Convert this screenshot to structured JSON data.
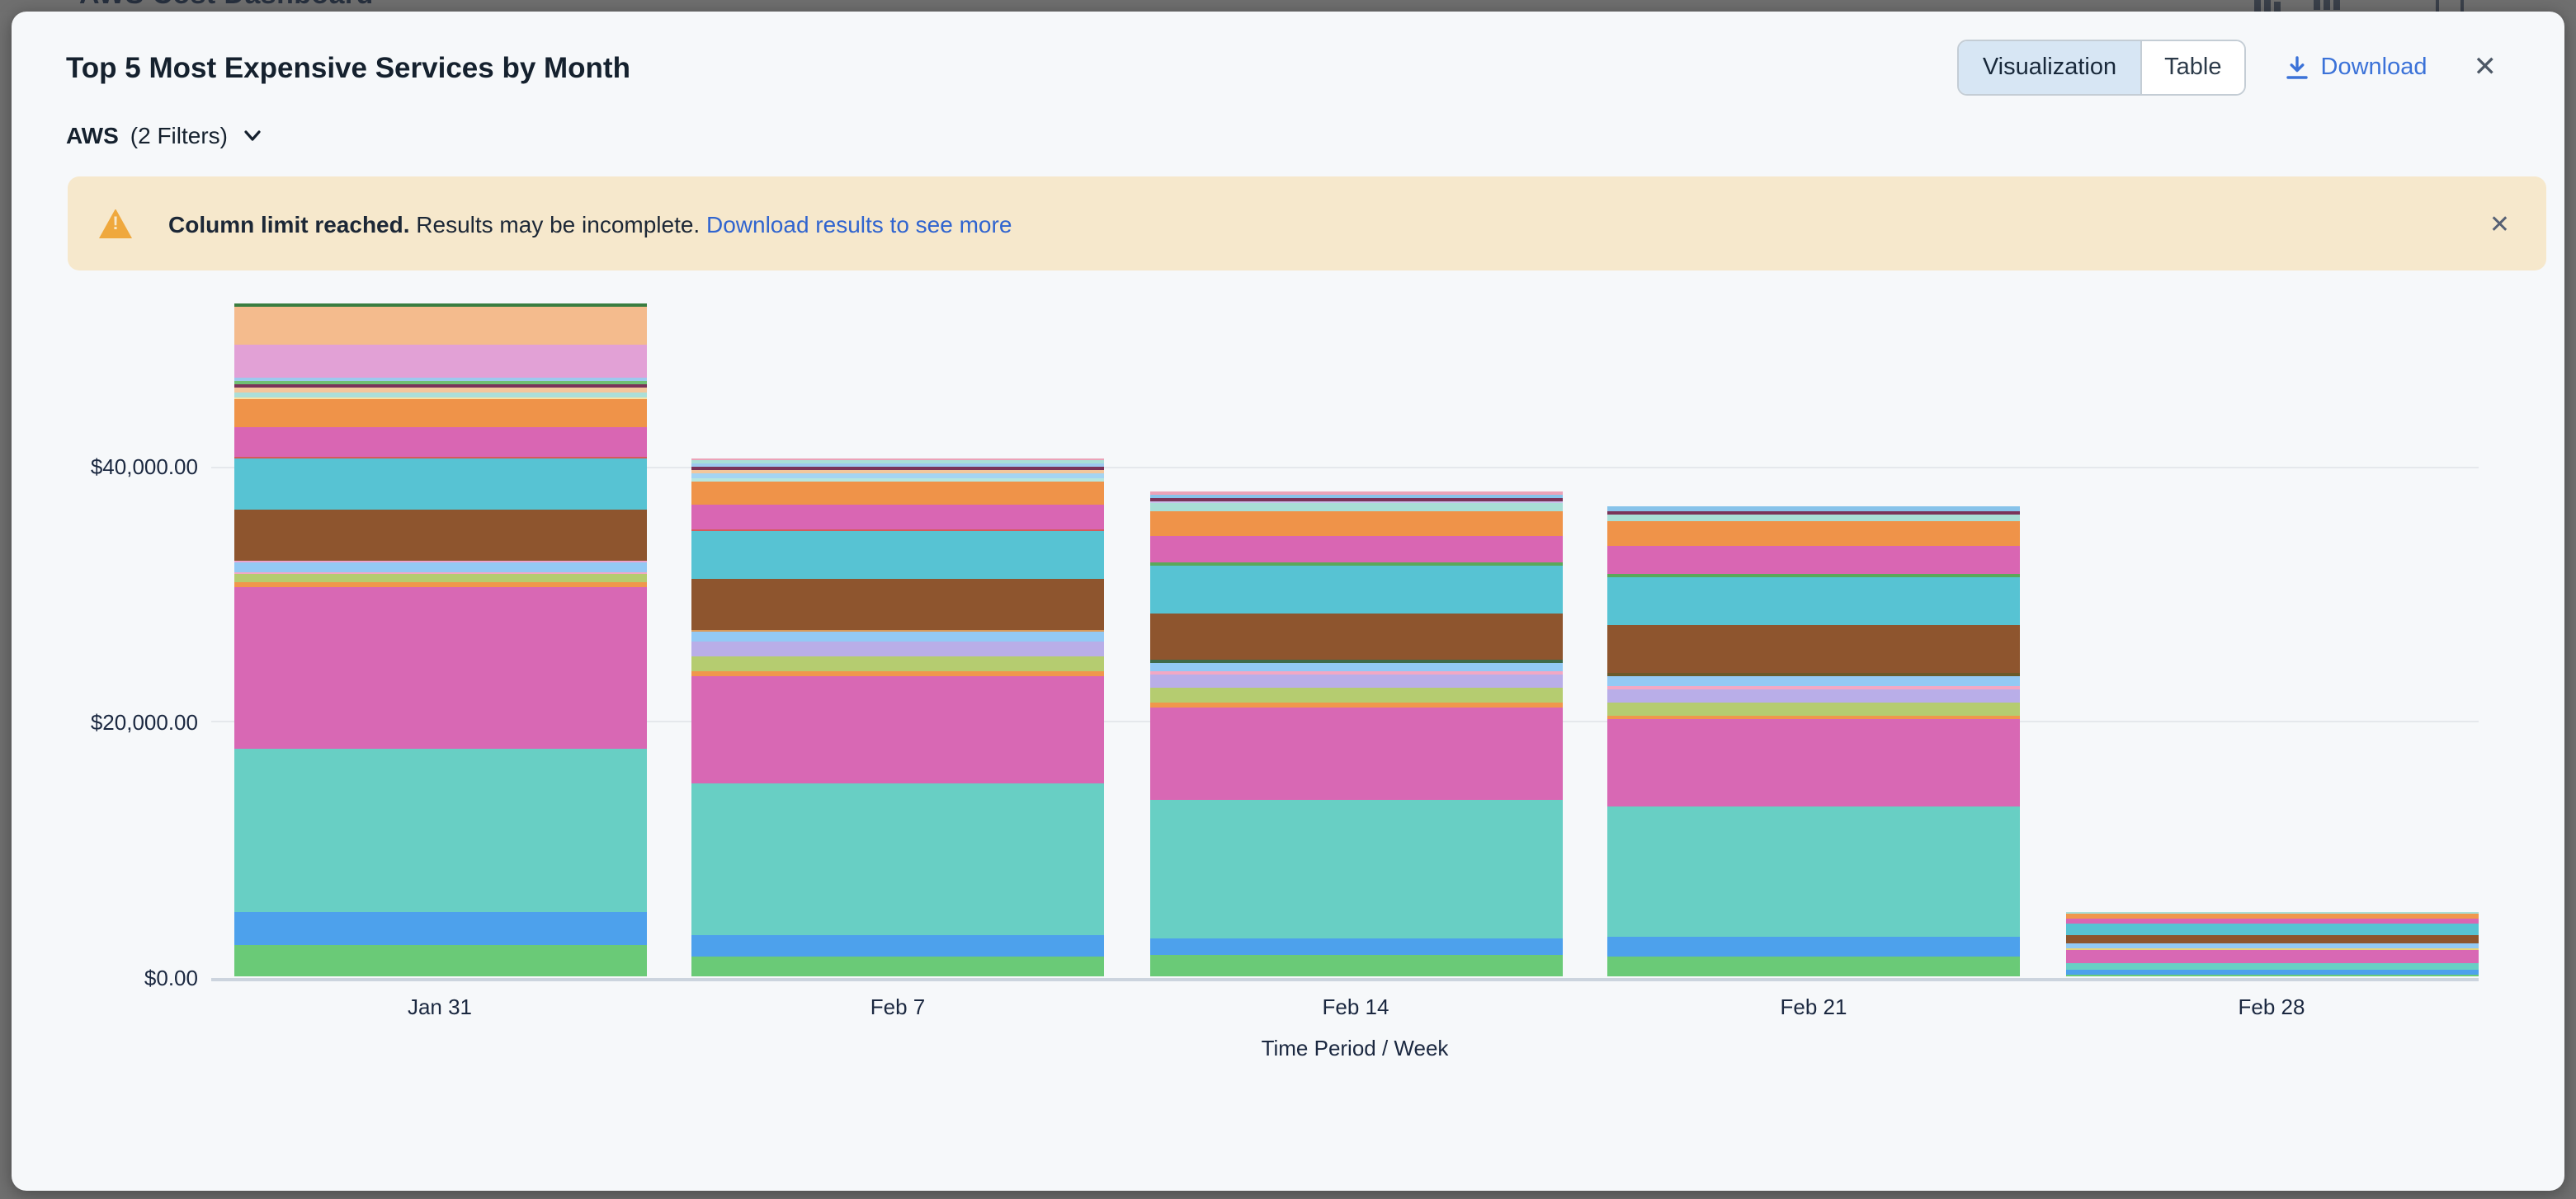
{
  "underlying_page": {
    "title": "AWS Cost Dashboard"
  },
  "modal": {
    "title": "Top 5 Most Expensive Services by Month",
    "filter": {
      "label": "AWS",
      "count_label": "(2 Filters)"
    },
    "view_toggle": {
      "options": [
        "Visualization",
        "Table"
      ],
      "selected": "Visualization"
    },
    "download_label": "Download",
    "close_glyph": "✕",
    "banner": {
      "bold": "Column limit reached.",
      "text": " Results may be incomplete. ",
      "link": "Download results to see more",
      "close_glyph": "✕",
      "background": "#f6e8cc",
      "icon": "warning-triangle"
    }
  },
  "chart_data": {
    "type": "bar",
    "stacked": true,
    "title": "Top 5 Most Expensive Services by Month",
    "xlabel": "Time Period / Week",
    "ylabel": "",
    "unit": "USD",
    "grid": true,
    "legend": "none",
    "y_ticks": [
      {
        "value": 0,
        "label": "$0.00"
      },
      {
        "value": 20000,
        "label": "$20,000.00"
      },
      {
        "value": 40000,
        "label": "$40,000.00"
      }
    ],
    "ylim": [
      0,
      53000
    ],
    "categories": [
      "Jan 31",
      "Feb 7",
      "Feb 14",
      "Feb 21",
      "Feb 28"
    ],
    "segment_order": "top-to-bottom",
    "bars": [
      {
        "label": "Jan 31",
        "total": 52770,
        "segments": [
          {
            "color": "#3a7d40",
            "value": 260
          },
          {
            "color": "#f4bb8d",
            "value": 2900
          },
          {
            "color": "#e2a1d6",
            "value": 2650
          },
          {
            "color": "#9dc9ee",
            "value": 260
          },
          {
            "color": "#6fbf73",
            "value": 260
          },
          {
            "color": "#7a3359",
            "value": 260
          },
          {
            "color": "#f3c79c",
            "value": 390
          },
          {
            "color": "#abdfd8",
            "value": 320
          },
          {
            "color": "#f6e1a4",
            "value": 190
          },
          {
            "color": "#ef9349",
            "value": 2200
          },
          {
            "color": "#d966b3",
            "value": 2260
          },
          {
            "color": "#d45b5b",
            "value": 190
          },
          {
            "color": "#57c3d3",
            "value": 3940
          },
          {
            "color": "#8e552e",
            "value": 4070
          },
          {
            "color": "#eba6cf",
            "value": 190
          },
          {
            "color": "#93c9f4",
            "value": 650
          },
          {
            "color": "#f2a8c4",
            "value": 130
          },
          {
            "color": "#b5cc70",
            "value": 710
          },
          {
            "color": "#f0974c",
            "value": 450
          },
          {
            "color": "#d868b4",
            "value": 12600
          },
          {
            "color": "#68cfc4",
            "value": 12850
          },
          {
            "color": "#4da1ec",
            "value": 2580
          },
          {
            "color": "#6aca77",
            "value": 2460
          }
        ]
      },
      {
        "label": "Feb 7",
        "total": 40700,
        "segments": [
          {
            "color": "#eba3b8",
            "value": 190
          },
          {
            "color": "#a8ded6",
            "value": 260
          },
          {
            "color": "#9dc9ee",
            "value": 260
          },
          {
            "color": "#7a3359",
            "value": 260
          },
          {
            "color": "#f3c79c",
            "value": 260
          },
          {
            "color": "#a5d4f2",
            "value": 320
          },
          {
            "color": "#b8e6de",
            "value": 260
          },
          {
            "color": "#ef9349",
            "value": 1810
          },
          {
            "color": "#d966b3",
            "value": 2000
          },
          {
            "color": "#d45b5b",
            "value": 190
          },
          {
            "color": "#57c3d3",
            "value": 3750
          },
          {
            "color": "#8e552e",
            "value": 3940
          },
          {
            "color": "#d99a5b",
            "value": 190
          },
          {
            "color": "#93c9f4",
            "value": 710
          },
          {
            "color": "#b9aee8",
            "value": 1160
          },
          {
            "color": "#b5cc70",
            "value": 1160
          },
          {
            "color": "#f0974c",
            "value": 390
          },
          {
            "color": "#d868b4",
            "value": 8400
          },
          {
            "color": "#68cfc4",
            "value": 11950
          },
          {
            "color": "#4da1ec",
            "value": 1620
          },
          {
            "color": "#6aca77",
            "value": 1620
          }
        ]
      },
      {
        "label": "Feb 14",
        "total": 38045,
        "segments": [
          {
            "color": "#eba3b8",
            "value": 190
          },
          {
            "color": "#87c3ea",
            "value": 260
          },
          {
            "color": "#7a3359",
            "value": 260
          },
          {
            "color": "#c9c2ec",
            "value": 190
          },
          {
            "color": "#a8ded6",
            "value": 645
          },
          {
            "color": "#ef9349",
            "value": 1940
          },
          {
            "color": "#d966b3",
            "value": 2070
          },
          {
            "color": "#5aa85a",
            "value": 260
          },
          {
            "color": "#57c3d3",
            "value": 3680
          },
          {
            "color": "#8e552e",
            "value": 3620
          },
          {
            "color": "#3e6a4a",
            "value": 320
          },
          {
            "color": "#93c9f4",
            "value": 710
          },
          {
            "color": "#f2a8c4",
            "value": 190
          },
          {
            "color": "#b9aee8",
            "value": 1100
          },
          {
            "color": "#b5cc70",
            "value": 1100
          },
          {
            "color": "#f0974c",
            "value": 390
          },
          {
            "color": "#d868b4",
            "value": 7230
          },
          {
            "color": "#68cfc4",
            "value": 10850
          },
          {
            "color": "#4da1ec",
            "value": 1360
          },
          {
            "color": "#6aca77",
            "value": 1680
          }
        ]
      },
      {
        "label": "Feb 21",
        "total": 36950,
        "segments": [
          {
            "color": "#87c3ea",
            "value": 390
          },
          {
            "color": "#7a3359",
            "value": 260
          },
          {
            "color": "#a8ded6",
            "value": 580
          },
          {
            "color": "#ef9349",
            "value": 1940
          },
          {
            "color": "#d966b3",
            "value": 2130
          },
          {
            "color": "#5aa85a",
            "value": 260
          },
          {
            "color": "#57c3d3",
            "value": 3750
          },
          {
            "color": "#8e552e",
            "value": 3810
          },
          {
            "color": "#6a5a2a",
            "value": 260
          },
          {
            "color": "#93c9f4",
            "value": 710
          },
          {
            "color": "#f2a8c4",
            "value": 260
          },
          {
            "color": "#b9aee8",
            "value": 1100
          },
          {
            "color": "#b5cc70",
            "value": 1030
          },
          {
            "color": "#f0974c",
            "value": 320
          },
          {
            "color": "#d868b4",
            "value": 6780
          },
          {
            "color": "#68cfc4",
            "value": 10270
          },
          {
            "color": "#4da1ec",
            "value": 1550
          },
          {
            "color": "#6aca77",
            "value": 1550
          }
        ]
      },
      {
        "label": "Feb 28",
        "total": 5160,
        "segments": [
          {
            "color": "#a8ded6",
            "value": 190
          },
          {
            "color": "#f0974c",
            "value": 390
          },
          {
            "color": "#d966b3",
            "value": 390
          },
          {
            "color": "#57c3d3",
            "value": 840
          },
          {
            "color": "#8e552e",
            "value": 710
          },
          {
            "color": "#93c9f4",
            "value": 320
          },
          {
            "color": "#e8d27a",
            "value": 130
          },
          {
            "color": "#d868b4",
            "value": 1160
          },
          {
            "color": "#68cfc4",
            "value": 520
          },
          {
            "color": "#4da1ec",
            "value": 320
          },
          {
            "color": "#6aca77",
            "value": 190
          }
        ]
      }
    ]
  }
}
